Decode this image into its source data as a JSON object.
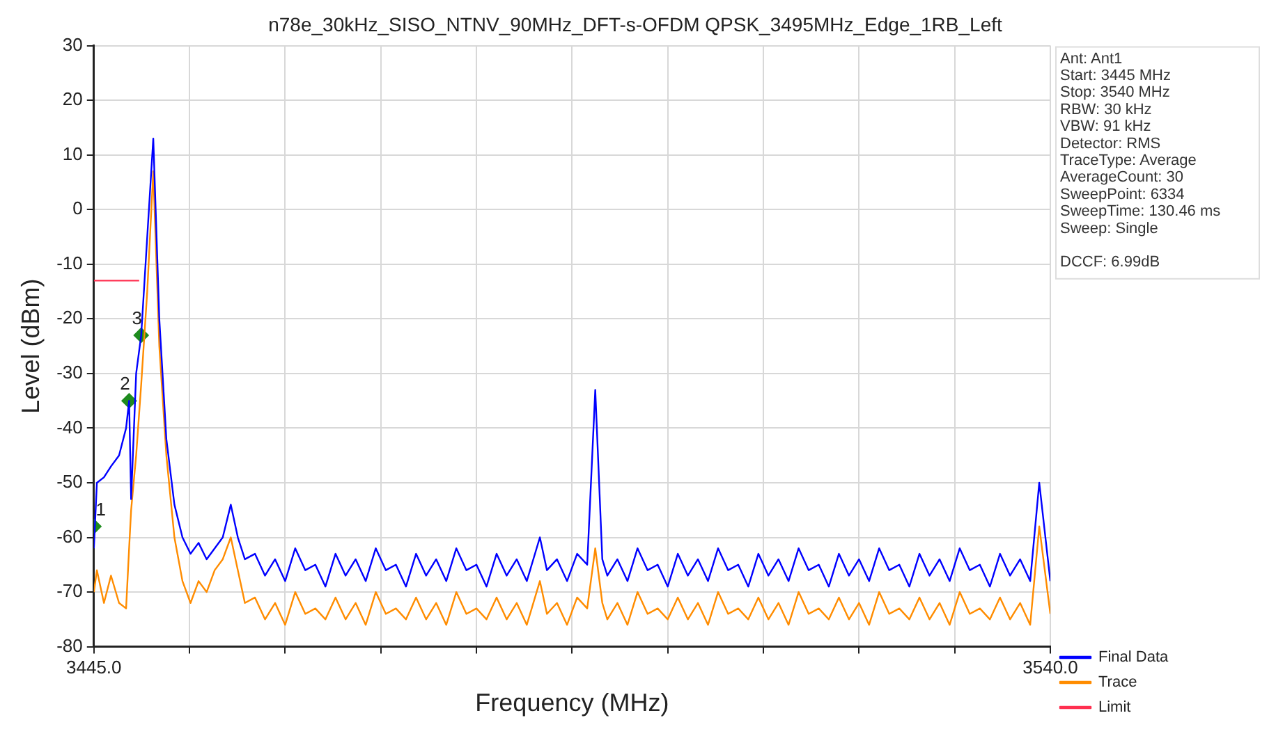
{
  "chart_data": {
    "type": "line",
    "title": "n78e_30kHz_SISO_NTNV_90MHz_DFT-s-OFDM QPSK_3495MHz_Edge_1RB_Left",
    "xlabel": "Frequency (MHz)",
    "ylabel": "Level (dBm)",
    "xlim": [
      3445,
      3540
    ],
    "xticks": [
      {
        "value": 3445,
        "label": "3445.0"
      },
      {
        "value": 3454.5,
        "label": null
      },
      {
        "value": 3464,
        "label": null
      },
      {
        "value": 3473.5,
        "label": null
      },
      {
        "value": 3483,
        "label": null
      },
      {
        "value": 3492.5,
        "label": null
      },
      {
        "value": 3502,
        "label": null
      },
      {
        "value": 3511.5,
        "label": null
      },
      {
        "value": 3521,
        "label": null
      },
      {
        "value": 3530.5,
        "label": null
      },
      {
        "value": 3540,
        "label": "3540.0"
      }
    ],
    "ylim": [
      -80,
      30
    ],
    "yticks": [
      -80,
      -70,
      -60,
      -50,
      -40,
      -30,
      -20,
      -10,
      0,
      10,
      20,
      30
    ],
    "grid": true,
    "legend": "bottom right",
    "line_style": "solid",
    "x": [
      3445,
      3445.3,
      3446,
      3446.7,
      3447.5,
      3448.2,
      3448.5,
      3448.7,
      3449.2,
      3449.7,
      3450.3,
      3450.9,
      3451.5,
      3452.2,
      3453,
      3453.8,
      3454.6,
      3455.4,
      3456.2,
      3457,
      3457.8,
      3458.6,
      3459.3,
      3460,
      3461,
      3462,
      3463,
      3464,
      3465,
      3466,
      3467,
      3468,
      3469,
      3470,
      3471,
      3472,
      3473,
      3474,
      3475,
      3476,
      3477,
      3478,
      3479,
      3480,
      3481,
      3482,
      3483,
      3484,
      3485,
      3486,
      3487,
      3488,
      3489.3,
      3490,
      3491,
      3492,
      3493,
      3494,
      3494.8,
      3495.5,
      3496,
      3497,
      3498,
      3499,
      3500,
      3501,
      3502,
      3503,
      3504,
      3505,
      3506,
      3507,
      3508,
      3509,
      3510,
      3511,
      3512,
      3513,
      3514,
      3515,
      3516,
      3517,
      3518,
      3519,
      3520,
      3521,
      3522,
      3523,
      3524,
      3525,
      3526,
      3527,
      3528,
      3529,
      3530,
      3531,
      3532,
      3533,
      3534,
      3535,
      3536,
      3537,
      3538,
      3538.9,
      3540
    ],
    "series": [
      {
        "name": "Final Data",
        "type": "line",
        "color": "#0000ff",
        "marker": "none",
        "values": [
          -62,
          -50,
          -49,
          -47,
          -45,
          -40,
          -35,
          -53,
          -30,
          -23,
          -5,
          13,
          -20,
          -42,
          -54,
          -60,
          -63,
          -61,
          -64,
          -62,
          -60,
          -54,
          -60,
          -64,
          -63,
          -67,
          -64,
          -68,
          -62,
          -66,
          -65,
          -69,
          -63,
          -67,
          -64,
          -68,
          -62,
          -66,
          -65,
          -69,
          -63,
          -67,
          -64,
          -68,
          -62,
          -66,
          -65,
          -69,
          -63,
          -67,
          -64,
          -68,
          -60,
          -66,
          -64,
          -68,
          -63,
          -65,
          -33,
          -64,
          -67,
          -64,
          -68,
          -62,
          -66,
          -65,
          -69,
          -63,
          -67,
          -64,
          -68,
          -62,
          -66,
          -65,
          -69,
          -63,
          -67,
          -64,
          -68,
          -62,
          -66,
          -65,
          -69,
          -63,
          -67,
          -64,
          -68,
          -62,
          -66,
          -65,
          -69,
          -63,
          -67,
          -64,
          -68,
          -62,
          -66,
          -65,
          -69,
          -63,
          -67,
          -64,
          -68,
          -50,
          -68
        ]
      },
      {
        "name": "Trace",
        "type": "line",
        "color": "#ff8c00",
        "marker": "none",
        "values": [
          -70,
          -66,
          -72,
          -67,
          -72,
          -73,
          -62,
          -55,
          -45,
          -32,
          -15,
          7,
          -25,
          -45,
          -60,
          -68,
          -72,
          -68,
          -70,
          -66,
          -64,
          -60,
          -66,
          -72,
          -71,
          -75,
          -72,
          -76,
          -70,
          -74,
          -73,
          -75,
          -71,
          -75,
          -72,
          -76,
          -70,
          -74,
          -73,
          -75,
          -71,
          -75,
          -72,
          -76,
          -70,
          -74,
          -73,
          -75,
          -71,
          -75,
          -72,
          -76,
          -68,
          -74,
          -72,
          -76,
          -71,
          -73,
          -62,
          -72,
          -75,
          -72,
          -76,
          -70,
          -74,
          -73,
          -75,
          -71,
          -75,
          -72,
          -76,
          -70,
          -74,
          -73,
          -75,
          -71,
          -75,
          -72,
          -76,
          -70,
          -74,
          -73,
          -75,
          -71,
          -75,
          -72,
          -76,
          -70,
          -74,
          -73,
          -75,
          -71,
          -75,
          -72,
          -76,
          -70,
          -74,
          -73,
          -75,
          -71,
          -75,
          -72,
          -76,
          -58,
          -74
        ]
      },
      {
        "name": "Limit",
        "type": "line",
        "color": "#ff3050",
        "marker": "none",
        "x": [
          3445,
          3449.5
        ],
        "values": [
          -13,
          -13
        ]
      },
      {
        "type": "scatter",
        "color": "#1e8c1e",
        "marker": "diamond",
        "x": [
          3445,
          3448.5,
          3449.7
        ],
        "values": [
          -58,
          -35,
          -23
        ]
      }
    ],
    "annotations": [
      {
        "text": "1",
        "x": 3445,
        "y": -58
      },
      {
        "text": "2",
        "x": 3448.5,
        "y": -35
      },
      {
        "text": "3",
        "x": 3449.7,
        "y": -23
      },
      "Ant: Ant1",
      "Start: 3445 MHz",
      "Stop: 3540 MHz",
      "RBW: 30 kHz",
      "VBW: 91 kHz",
      "Detector: RMS",
      "TraceType: Average",
      "AverageCount: 30",
      "SweepPoint: 6334",
      "SweepTime: 130.46 ms",
      "Sweep: Single",
      "DCCF: 6.99dB"
    ]
  }
}
